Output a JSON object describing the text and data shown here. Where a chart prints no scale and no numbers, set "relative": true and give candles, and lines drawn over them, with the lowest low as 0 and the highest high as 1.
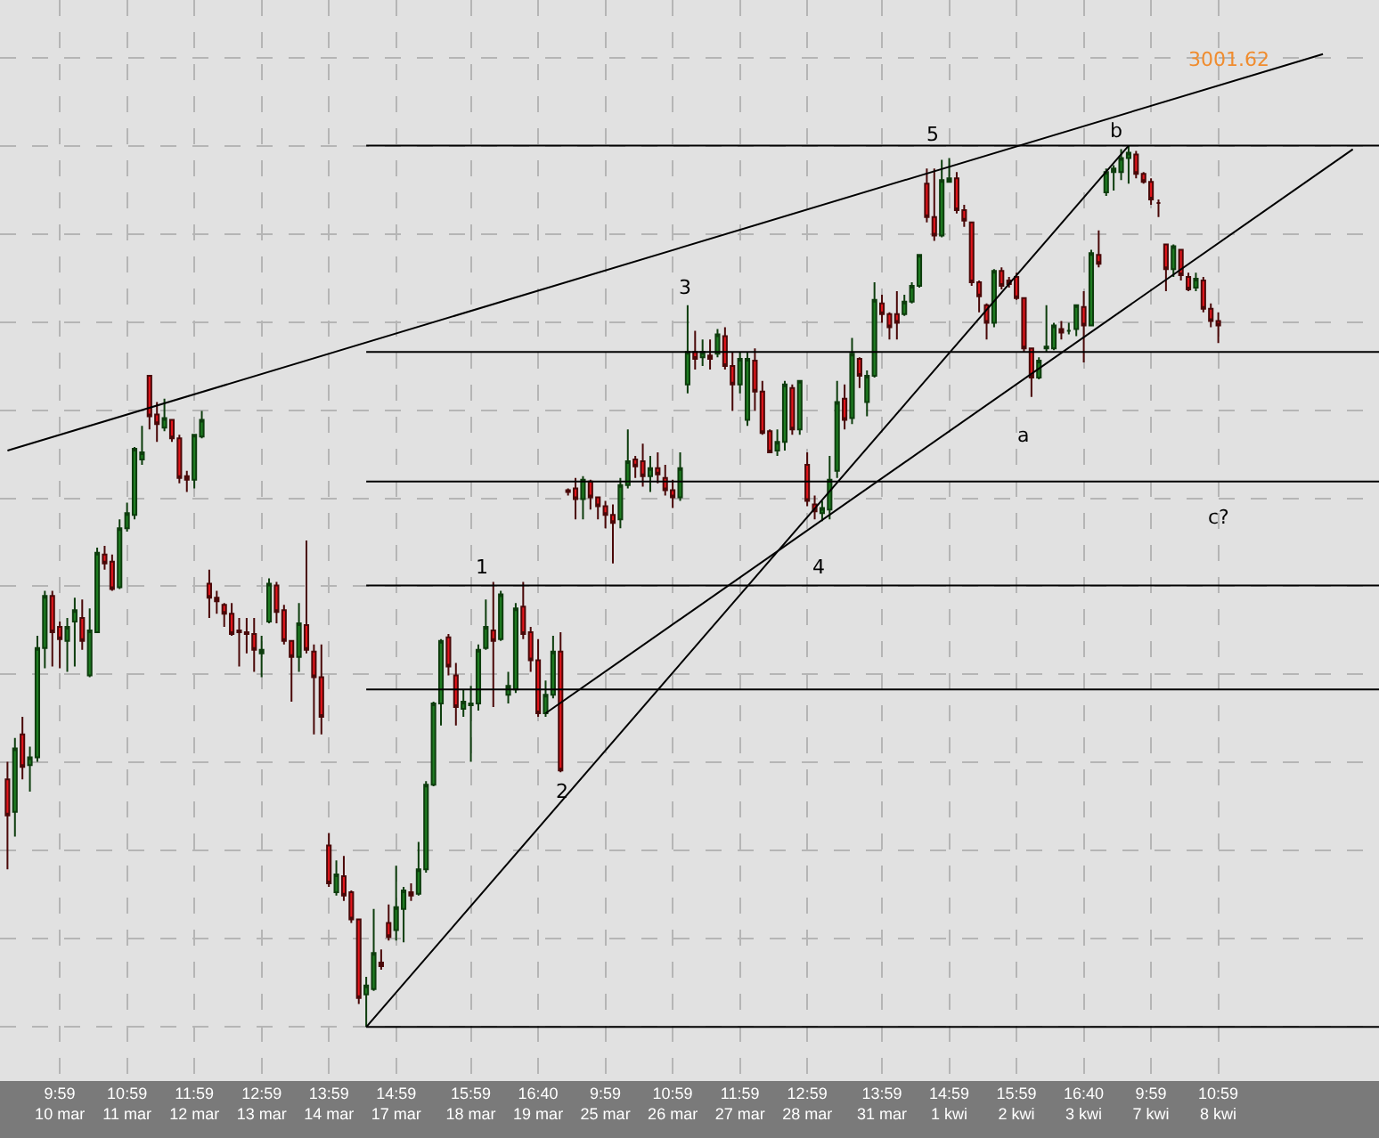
{
  "chart_data": {
    "type": "candlestick",
    "relative": true,
    "grid": true,
    "categories": [
      null,
      null,
      null,
      null,
      null,
      null,
      null,
      "9:59\n10 mar",
      null,
      null,
      null,
      null,
      null,
      null,
      null,
      null,
      "10:59\n11 mar",
      null,
      null,
      null,
      null,
      null,
      null,
      null,
      null,
      "11:59\n12 mar",
      null,
      null,
      null,
      null,
      null,
      null,
      null,
      null,
      "12:59\n13 mar",
      null,
      null,
      null,
      null,
      null,
      null,
      null,
      null,
      "13:59\n14 mar",
      null,
      null,
      null,
      null,
      null,
      null,
      null,
      null,
      "14:59\n17 mar",
      null,
      null,
      null,
      null,
      null,
      null,
      null,
      null,
      null,
      "15:59\n18 mar",
      null,
      null,
      null,
      null,
      null,
      null,
      null,
      null,
      "16:40\n19 mar",
      null,
      null,
      null,
      null,
      null,
      null,
      null,
      null,
      "9:59\n25 mar",
      null,
      null,
      null,
      null,
      null,
      null,
      null,
      null,
      "10:59\n26 mar",
      null,
      null,
      null,
      null,
      null,
      null,
      null,
      null,
      "11:59\n27 mar",
      null,
      null,
      null,
      null,
      null,
      null,
      null,
      null,
      "12:59\n28 mar",
      null,
      null,
      null,
      null,
      null,
      null,
      null,
      null,
      null,
      "13:59\n31 mar",
      null,
      null,
      null,
      null,
      null,
      null,
      null,
      null,
      "14:59\n1 kwi",
      null,
      null,
      null,
      null,
      null,
      null,
      null,
      null,
      "15:59\n2 kwi",
      null,
      null,
      null,
      null,
      null,
      null,
      null,
      null,
      "16:40\n3 kwi",
      null,
      null,
      null,
      null,
      null,
      null,
      null,
      null,
      "9:59\n7 kwi",
      null,
      null,
      null,
      null,
      null,
      null,
      null,
      null,
      "10:59\n8 kwi",
      null,
      null,
      null,
      null,
      null,
      null,
      null,
      null,
      null,
      null,
      null,
      null,
      null,
      null,
      null,
      null,
      null,
      null,
      null,
      null,
      null
    ],
    "ohlc": [
      [
        0.281,
        0.301,
        0.179,
        0.24
      ],
      [
        0.244,
        0.328,
        0.216,
        0.316
      ],
      [
        0.332,
        0.352,
        0.281,
        0.295
      ],
      [
        0.297,
        0.318,
        0.267,
        0.306
      ],
      [
        0.306,
        0.444,
        0.301,
        0.43
      ],
      [
        0.43,
        0.495,
        0.407,
        0.489
      ],
      [
        0.489,
        0.495,
        0.409,
        0.448
      ],
      [
        0.454,
        0.46,
        0.407,
        0.44
      ],
      [
        0.438,
        0.464,
        0.403,
        0.454
      ],
      [
        0.46,
        0.487,
        0.409,
        0.473
      ],
      [
        0.464,
        0.485,
        0.428,
        0.438
      ],
      [
        0.399,
        0.475,
        0.397,
        0.45
      ],
      [
        0.448,
        0.544,
        0.448,
        0.538
      ],
      [
        0.536,
        0.546,
        0.519,
        0.526
      ],
      [
        0.528,
        0.536,
        0.495,
        0.497
      ],
      [
        0.499,
        0.576,
        0.497,
        0.566
      ],
      [
        0.566,
        0.595,
        0.562,
        0.583
      ],
      [
        0.581,
        0.658,
        0.576,
        0.656
      ],
      [
        0.644,
        0.682,
        0.638,
        0.652
      ],
      [
        0.739,
        0.739,
        0.678,
        0.693
      ],
      [
        0.695,
        0.709,
        0.664,
        0.684
      ],
      [
        0.68,
        0.713,
        0.676,
        0.691
      ],
      [
        0.689,
        0.689,
        0.664,
        0.668
      ],
      [
        0.668,
        0.672,
        0.617,
        0.623
      ],
      [
        0.625,
        0.631,
        0.607,
        0.621
      ],
      [
        0.621,
        0.672,
        0.611,
        0.672
      ],
      [
        0.67,
        0.699,
        0.668,
        0.689
      ],
      [
        0.503,
        0.519,
        0.464,
        0.487
      ],
      [
        0.487,
        0.495,
        0.469,
        0.483
      ],
      [
        0.479,
        0.481,
        0.454,
        0.469
      ],
      [
        0.469,
        0.481,
        0.444,
        0.446
      ],
      [
        0.45,
        0.464,
        0.409,
        0.448
      ],
      [
        0.448,
        0.464,
        0.424,
        0.446
      ],
      [
        0.446,
        0.464,
        0.403,
        0.428
      ],
      [
        0.424,
        0.444,
        0.397,
        0.428
      ],
      [
        0.46,
        0.509,
        0.458,
        0.503
      ],
      [
        0.501,
        0.505,
        0.458,
        0.471
      ],
      [
        0.473,
        0.479,
        0.434,
        0.438
      ],
      [
        0.438,
        0.438,
        0.369,
        0.42
      ],
      [
        0.42,
        0.481,
        0.403,
        0.458
      ],
      [
        0.456,
        0.552,
        0.424,
        0.428
      ],
      [
        0.426,
        0.434,
        0.332,
        0.397
      ],
      [
        0.397,
        0.434,
        0.332,
        0.352
      ],
      [
        0.206,
        0.22,
        0.159,
        0.163
      ],
      [
        0.153,
        0.189,
        0.149,
        0.173
      ],
      [
        0.171,
        0.194,
        0.143,
        0.149
      ],
      [
        0.153,
        0.155,
        0.118,
        0.122
      ],
      [
        0.122,
        0.122,
        0.026,
        0.033
      ],
      [
        0.037,
        0.057,
        0,
        0.047
      ],
      [
        0.043,
        0.134,
        0.041,
        0.084
      ],
      [
        0.073,
        0.088,
        0.065,
        0.069
      ],
      [
        0.118,
        0.139,
        0.098,
        0.102
      ],
      [
        0.11,
        0.183,
        0.098,
        0.136
      ],
      [
        0.134,
        0.159,
        0.096,
        0.155
      ],
      [
        0.153,
        0.163,
        0.143,
        0.149
      ],
      [
        0.151,
        0.21,
        0.149,
        0.179
      ],
      [
        0.179,
        0.279,
        0.175,
        0.275
      ],
      [
        0.275,
        0.369,
        0.273,
        0.367
      ],
      [
        0.367,
        0.44,
        0.342,
        0.438
      ],
      [
        0.442,
        0.446,
        0.399,
        0.409
      ],
      [
        0.399,
        0.413,
        0.342,
        0.363
      ],
      [
        0.361,
        0.383,
        0.352,
        0.369
      ],
      [
        0.365,
        0.387,
        0.301,
        0.367
      ],
      [
        0.367,
        0.434,
        0.359,
        0.428
      ],
      [
        0.43,
        0.485,
        0.428,
        0.454
      ],
      [
        0.45,
        0.505,
        0.363,
        0.438
      ],
      [
        0.44,
        0.495,
        0.438,
        0.491
      ],
      [
        0.377,
        0.403,
        0.367,
        0.387
      ],
      [
        0.383,
        0.481,
        0.379,
        0.475
      ],
      [
        0.477,
        0.505,
        0.44,
        0.446
      ],
      [
        0.448,
        0.454,
        0.403,
        0.416
      ],
      [
        0.416,
        0.44,
        0.352,
        0.356
      ],
      [
        0.356,
        0.393,
        0.352,
        0.377
      ],
      [
        0.377,
        0.444,
        0.373,
        0.426
      ],
      [
        0.426,
        0.448,
        0.289,
        0.291
      ],
      [
        0.609,
        0.611,
        0.603,
        0.607
      ],
      [
        0.611,
        0.623,
        0.576,
        0.599
      ],
      [
        0.599,
        0.625,
        0.576,
        0.621
      ],
      [
        0.619,
        0.621,
        0.587,
        0.601
      ],
      [
        0.601,
        0.601,
        0.576,
        0.591
      ],
      [
        0.591,
        0.597,
        0.566,
        0.581
      ],
      [
        0.581,
        0.593,
        0.526,
        0.572
      ],
      [
        0.576,
        0.623,
        0.566,
        0.615
      ],
      [
        0.615,
        0.678,
        0.611,
        0.642
      ],
      [
        0.644,
        0.648,
        0.623,
        0.636
      ],
      [
        0.642,
        0.662,
        0.613,
        0.625
      ],
      [
        0.625,
        0.648,
        0.607,
        0.634
      ],
      [
        0.634,
        0.652,
        0.617,
        0.627
      ],
      [
        0.623,
        0.638,
        0.603,
        0.609
      ],
      [
        0.609,
        0.621,
        0.589,
        0.601
      ],
      [
        0.601,
        0.652,
        0.597,
        0.634
      ],
      [
        0.729,
        0.819,
        0.719,
        0.766
      ],
      [
        0.766,
        0.79,
        0.746,
        0.758
      ],
      [
        0.76,
        0.78,
        0.75,
        0.766
      ],
      [
        0.762,
        0.78,
        0.746,
        0.758
      ],
      [
        0.764,
        0.792,
        0.76,
        0.786
      ],
      [
        0.784,
        0.794,
        0.746,
        0.75
      ],
      [
        0.75,
        0.766,
        0.699,
        0.729
      ],
      [
        0.729,
        0.766,
        0.719,
        0.758
      ],
      [
        0.689,
        0.766,
        0.682,
        0.758
      ],
      [
        0.756,
        0.77,
        0.699,
        0.721
      ],
      [
        0.721,
        0.733,
        0.672,
        0.674
      ],
      [
        0.676,
        0.678,
        0.652,
        0.652
      ],
      [
        0.654,
        0.678,
        0.648,
        0.664
      ],
      [
        0.664,
        0.733,
        0.654,
        0.729
      ],
      [
        0.725,
        0.729,
        0.672,
        0.678
      ],
      [
        0.678,
        0.733,
        0.672,
        0.733
      ],
      [
        0.638,
        0.652,
        0.591,
        0.597
      ],
      [
        0.593,
        0.603,
        0.576,
        0.585
      ],
      [
        0.583,
        0.597,
        0.574,
        0.589
      ],
      [
        0.587,
        0.648,
        0.576,
        0.621
      ],
      [
        0.631,
        0.733,
        0.623,
        0.709
      ],
      [
        0.713,
        0.729,
        0.678,
        0.689
      ],
      [
        0.691,
        0.782,
        0.684,
        0.764
      ],
      [
        0.758,
        0.76,
        0.725,
        0.739
      ],
      [
        0.709,
        0.745,
        0.693,
        0.739
      ],
      [
        0.739,
        0.845,
        0.737,
        0.825
      ],
      [
        0.821,
        0.831,
        0.799,
        0.809
      ],
      [
        0.809,
        0.811,
        0.78,
        0.794
      ],
      [
        0.809,
        0.835,
        0.78,
        0.799
      ],
      [
        0.809,
        0.831,
        0.807,
        0.823
      ],
      [
        0.823,
        0.845,
        0.821,
        0.841
      ],
      [
        0.841,
        0.876,
        0.839,
        0.876
      ],
      [
        0.957,
        0.974,
        0.913,
        0.919
      ],
      [
        0.919,
        0.974,
        0.892,
        0.898
      ],
      [
        0.898,
        0.984,
        0.896,
        0.961
      ],
      [
        0.959,
        0.986,
        0.959,
        0.963
      ],
      [
        0.963,
        0.97,
        0.923,
        0.927
      ],
      [
        0.927,
        0.933,
        0.908,
        0.915
      ],
      [
        0.913,
        0.913,
        0.841,
        0.845
      ],
      [
        0.845,
        0.847,
        0.811,
        0.829
      ],
      [
        0.819,
        0.821,
        0.78,
        0.799
      ],
      [
        0.799,
        0.86,
        0.794,
        0.858
      ],
      [
        0.858,
        0.862,
        0.837,
        0.841
      ],
      [
        0.847,
        0.851,
        0.839,
        0.843
      ],
      [
        0.851,
        0.856,
        0.825,
        0.827
      ],
      [
        0.827,
        0.827,
        0.766,
        0.77
      ],
      [
        0.77,
        0.77,
        0.715,
        0.737
      ],
      [
        0.737,
        0.76,
        0.735,
        0.756
      ],
      [
        0.77,
        0.819,
        0.766,
        0.772
      ],
      [
        0.77,
        0.799,
        0.768,
        0.796
      ],
      [
        0.792,
        0.801,
        0.78,
        0.788
      ],
      [
        0.79,
        0.799,
        0.786,
        0.79
      ],
      [
        0.792,
        0.819,
        0.784,
        0.819
      ],
      [
        0.817,
        0.835,
        0.754,
        0.796
      ],
      [
        0.796,
        0.882,
        0.796,
        0.878
      ],
      [
        0.876,
        0.904,
        0.862,
        0.866
      ],
      [
        0.947,
        0.974,
        0.943,
        0.97
      ],
      [
        0.97,
        0.978,
        0.949,
        0.974
      ],
      [
        0.97,
        0.996,
        0.961,
        0.986
      ],
      [
        0.986,
        1,
        0.957,
        0.992
      ],
      [
        0.99,
        0.994,
        0.963,
        0.968
      ],
      [
        0.968,
        0.97,
        0.957,
        0.959
      ],
      [
        0.959,
        0.963,
        0.933,
        0.939
      ],
      [
        0.935,
        0.939,
        0.919,
        0.935
      ],
      [
        0.888,
        0.888,
        0.835,
        0.86
      ],
      [
        0.86,
        0.888,
        0.851,
        0.886
      ],
      [
        0.882,
        0.882,
        0.847,
        0.853
      ],
      [
        0.851,
        0.856,
        0.835,
        0.837
      ],
      [
        0.839,
        0.856,
        0.835,
        0.849
      ],
      [
        0.847,
        0.851,
        0.811,
        0.815
      ],
      [
        0.815,
        0.821,
        0.794,
        0.801
      ],
      [
        0.801,
        0.811,
        0.776,
        0.796
      ],
      null,
      null,
      null,
      null,
      null,
      null,
      null,
      null,
      null,
      null,
      null,
      null,
      null,
      null,
      null,
      null,
      null,
      null,
      null,
      null,
      null
    ],
    "series": [
      {
        "type": "line",
        "color": "#000000",
        "values": [
          0.654,
          null,
          null,
          null,
          null,
          null,
          null,
          null,
          null,
          null,
          null,
          null,
          null,
          null,
          null,
          null,
          null,
          null,
          null,
          null,
          null,
          null,
          null,
          null,
          null,
          null,
          null,
          null,
          null,
          null,
          null,
          null,
          null,
          null,
          null,
          null,
          null,
          null,
          null,
          null,
          null,
          null,
          null,
          null,
          null,
          null,
          null,
          null,
          null,
          null,
          null,
          null,
          null,
          null,
          null,
          null,
          null,
          null,
          null,
          null,
          null,
          null,
          null,
          null,
          null,
          null,
          null,
          null,
          null,
          null,
          null,
          null,
          null,
          null,
          null,
          null,
          null,
          null,
          null,
          null,
          null,
          null,
          null,
          null,
          null,
          null,
          null,
          null,
          null,
          null,
          null,
          null,
          null,
          null,
          null,
          null,
          null,
          null,
          null,
          null,
          null,
          null,
          null,
          null,
          null,
          null,
          null,
          null,
          null,
          null,
          null,
          null,
          null,
          null,
          null,
          null,
          null,
          null,
          null,
          null,
          null,
          null,
          null,
          null,
          null,
          null,
          null,
          null,
          null,
          null,
          null,
          null,
          null,
          null,
          null,
          null,
          null,
          null,
          null,
          null,
          null,
          null,
          null,
          null,
          null,
          null,
          null,
          null,
          null,
          null,
          null,
          null,
          null,
          null,
          null,
          null,
          null,
          null,
          null,
          null,
          null,
          null,
          null,
          null,
          null,
          null,
          null,
          null,
          null,
          null,
          null,
          null,
          null,
          null,
          null,
          null,
          1.104,
          null,
          null,
          null,
          null,
          null,
          null,
          null
        ]
      },
      {
        "type": "line",
        "color": "#000000",
        "values": [
          null,
          null,
          null,
          null,
          null,
          null,
          null,
          null,
          null,
          null,
          null,
          null,
          null,
          null,
          null,
          null,
          null,
          null,
          null,
          null,
          null,
          null,
          null,
          null,
          null,
          null,
          null,
          null,
          null,
          null,
          null,
          null,
          null,
          null,
          null,
          null,
          null,
          null,
          null,
          null,
          null,
          null,
          null,
          null,
          null,
          null,
          null,
          null,
          0,
          null,
          null,
          null,
          null,
          null,
          null,
          null,
          null,
          null,
          null,
          null,
          null,
          null,
          null,
          null,
          null,
          null,
          null,
          null,
          null,
          null,
          null,
          null,
          null,
          null,
          null,
          null,
          null,
          null,
          null,
          null,
          null,
          null,
          null,
          null,
          null,
          null,
          null,
          null,
          null,
          null,
          null,
          null,
          null,
          null,
          null,
          null,
          null,
          null,
          null,
          null,
          null,
          null,
          null,
          null,
          null,
          null,
          null,
          null,
          null,
          null,
          null,
          null,
          null,
          null,
          null,
          null,
          null,
          null,
          null,
          null,
          null,
          null,
          null,
          null,
          null,
          null,
          null,
          null,
          null,
          null,
          null,
          null,
          null,
          null,
          null,
          null,
          null,
          null,
          null,
          null,
          null,
          null,
          null,
          null,
          null,
          null,
          null,
          null,
          null,
          null,
          1,
          null,
          null,
          null,
          null,
          null,
          null,
          null,
          null,
          null,
          null,
          null,
          null,
          null,
          null,
          null,
          null,
          null,
          null,
          null,
          null,
          null,
          null,
          null,
          null,
          null,
          null,
          null,
          null,
          null,
          null,
          null,
          null,
          null
        ]
      },
      {
        "type": "line",
        "color": "#000000",
        "values": [
          null,
          null,
          null,
          null,
          null,
          null,
          null,
          null,
          null,
          null,
          null,
          null,
          null,
          null,
          null,
          null,
          null,
          null,
          null,
          null,
          null,
          null,
          null,
          null,
          null,
          null,
          null,
          null,
          null,
          null,
          null,
          null,
          null,
          null,
          null,
          null,
          null,
          null,
          null,
          null,
          null,
          null,
          null,
          null,
          null,
          null,
          null,
          null,
          null,
          null,
          null,
          null,
          null,
          null,
          null,
          null,
          null,
          null,
          null,
          null,
          null,
          null,
          null,
          null,
          null,
          null,
          null,
          null,
          null,
          null,
          null,
          null,
          0.356,
          null,
          null,
          null,
          null,
          null,
          null,
          null,
          null,
          null,
          null,
          null,
          null,
          null,
          null,
          null,
          null,
          null,
          null,
          null,
          null,
          null,
          null,
          null,
          null,
          null,
          null,
          null,
          null,
          null,
          null,
          null,
          null,
          null,
          null,
          null,
          null,
          null,
          null,
          null,
          null,
          null,
          null,
          null,
          null,
          null,
          null,
          null,
          null,
          null,
          null,
          null,
          null,
          null,
          null,
          null,
          null,
          null,
          null,
          null,
          null,
          null,
          null,
          null,
          null,
          null,
          null,
          null,
          null,
          null,
          null,
          null,
          null,
          null,
          null,
          null,
          null,
          null,
          null,
          null,
          null,
          null,
          null,
          null,
          null,
          null,
          null,
          null,
          null,
          null,
          null,
          null,
          null,
          null,
          null,
          null,
          null,
          null,
          null,
          null,
          null,
          null,
          null,
          null,
          null,
          null,
          null,
          null,
          0.996,
          null,
          null,
          null
        ]
      }
    ],
    "ref_lines": [
      {
        "axis": "y",
        "value": 1,
        "color": "#000000"
      },
      {
        "axis": "y",
        "value": 0.766,
        "color": "#000000"
      },
      {
        "axis": "y",
        "value": 0.619,
        "color": "#000000"
      },
      {
        "axis": "y",
        "value": 0.501,
        "color": "#000000"
      },
      {
        "axis": "y",
        "value": 0.383,
        "color": "#000000"
      },
      {
        "axis": "y",
        "value": 0,
        "color": "#000000"
      }
    ],
    "annotations": [
      "3001.62",
      "1",
      "2",
      "3",
      "4",
      "5",
      "a",
      "b",
      "c?"
    ]
  }
}
